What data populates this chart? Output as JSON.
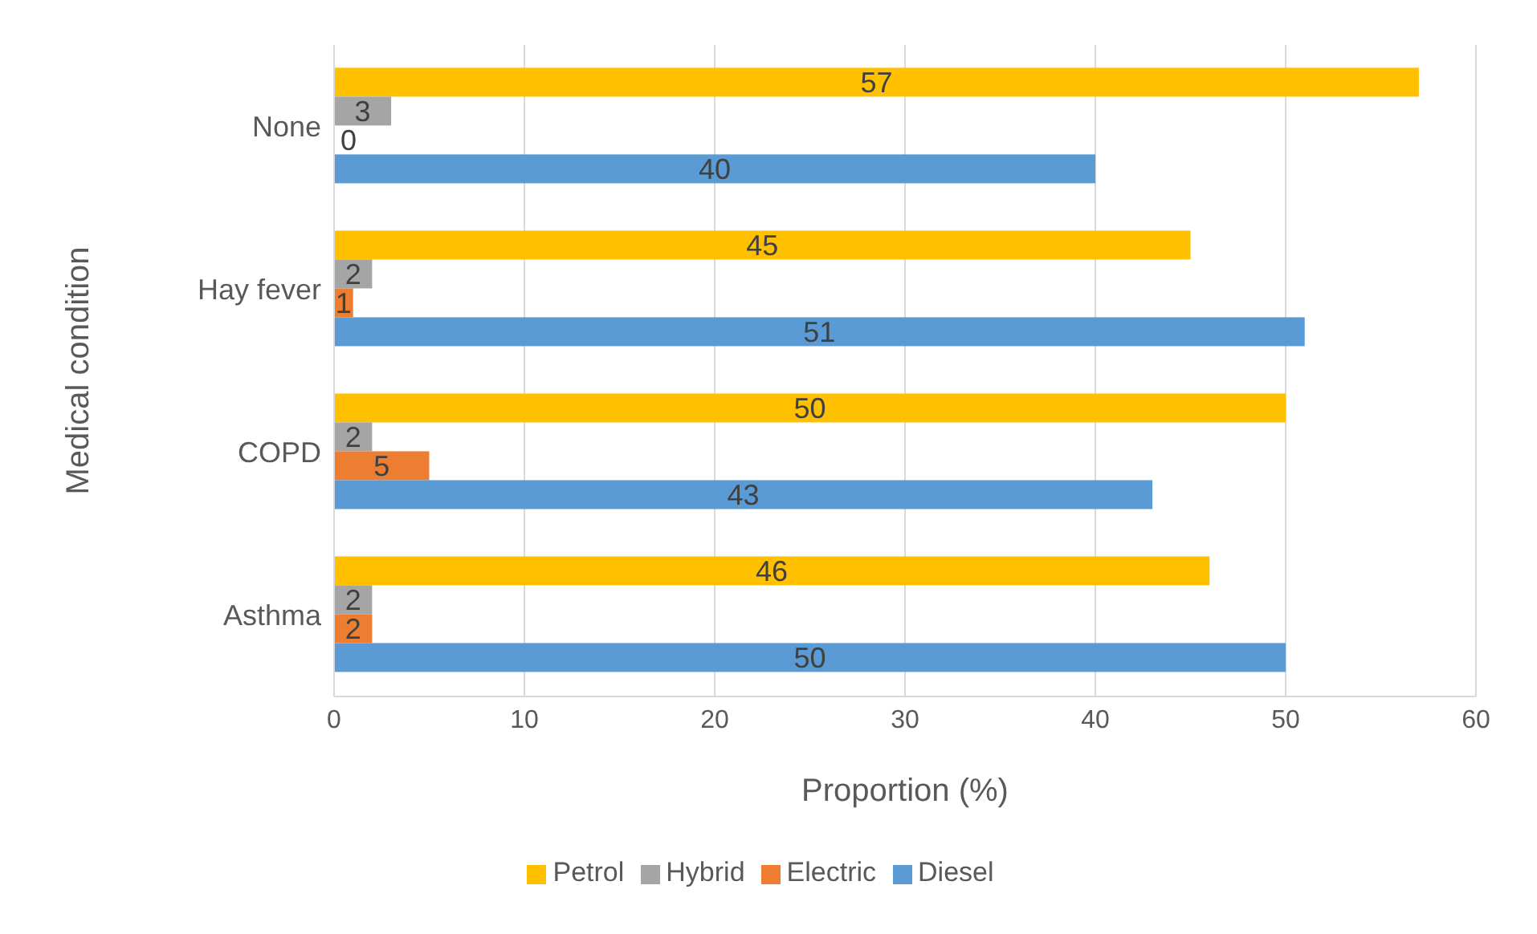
{
  "chart_data": {
    "type": "bar",
    "orientation": "horizontal",
    "xlabel": "Proportion (%)",
    "ylabel": "Medical condition",
    "categories": [
      "None",
      "Hay fever",
      "COPD",
      "Asthma"
    ],
    "series": [
      {
        "name": "Petrol",
        "color": "#ffc000",
        "values": [
          57,
          45,
          50,
          46
        ]
      },
      {
        "name": "Hybrid",
        "color": "#a5a5a5",
        "values": [
          3,
          2,
          2,
          2
        ]
      },
      {
        "name": "Electric",
        "color": "#ed7d31",
        "values": [
          0,
          1,
          5,
          2
        ]
      },
      {
        "name": "Diesel",
        "color": "#5b9bd5",
        "values": [
          40,
          51,
          43,
          50
        ]
      }
    ],
    "xlim": [
      0,
      60
    ],
    "xticks": [
      0,
      10,
      20,
      30,
      40,
      50,
      60
    ],
    "grid": "x",
    "legend": "bottom",
    "data_labels": true
  }
}
